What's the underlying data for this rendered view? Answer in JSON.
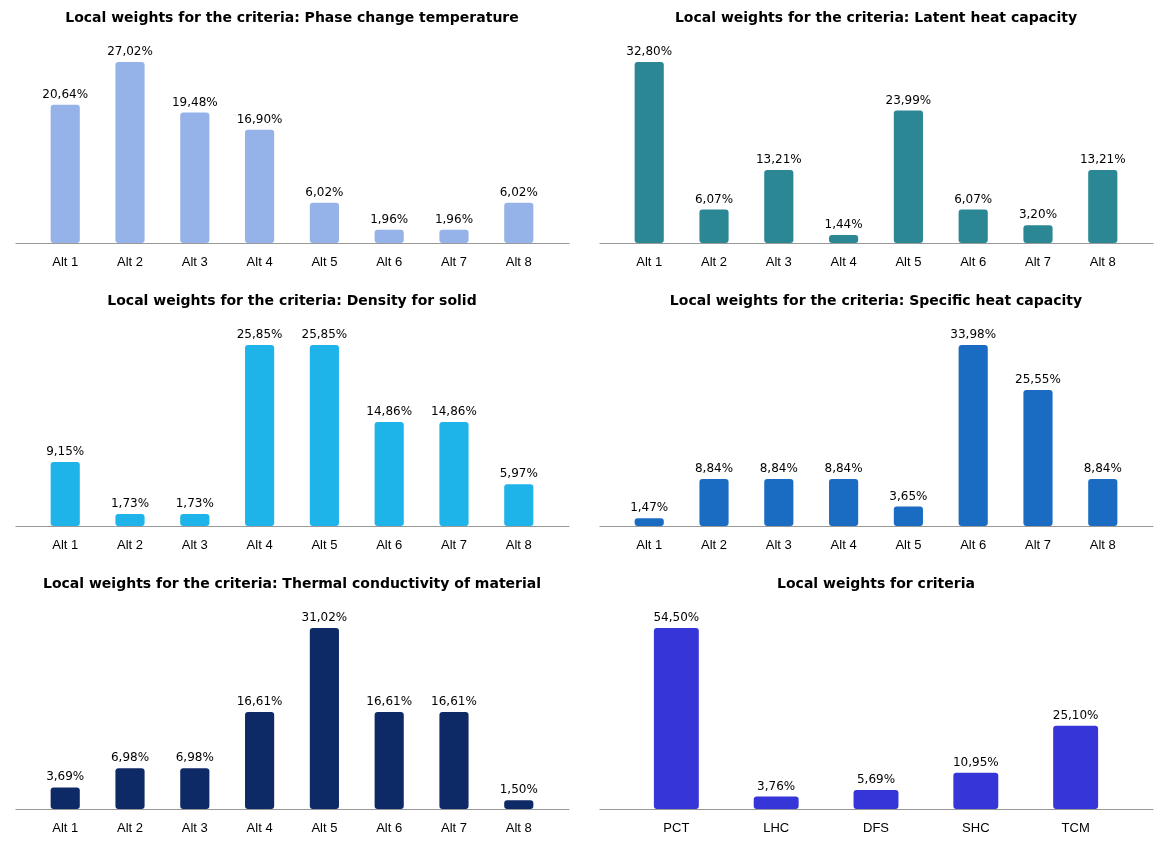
{
  "chart_data": [
    {
      "type": "bar",
      "title": "Local weights for the criteria: Phase change temperature",
      "categories": [
        "Alt 1",
        "Alt 2",
        "Alt 3",
        "Alt 4",
        "Alt 5",
        "Alt 6",
        "Alt 7",
        "Alt 8"
      ],
      "values": [
        20.64,
        27.02,
        19.48,
        16.9,
        6.02,
        1.96,
        1.96,
        6.02
      ],
      "value_labels": [
        "20,64%",
        "27,02%",
        "19,48%",
        "16,90%",
        "6,02%",
        "1,96%",
        "1,96%",
        "6,02%"
      ],
      "color": "#95b3e8"
    },
    {
      "type": "bar",
      "title": "Local weights for the criteria: Latent heat capacity",
      "categories": [
        "Alt 1",
        "Alt 2",
        "Alt 3",
        "Alt 4",
        "Alt 5",
        "Alt 6",
        "Alt 7",
        "Alt 8"
      ],
      "values": [
        32.8,
        6.07,
        13.21,
        1.44,
        23.99,
        6.07,
        3.2,
        13.21
      ],
      "value_labels": [
        "32,80%",
        "6,07%",
        "13,21%",
        "1,44%",
        "23,99%",
        "6,07%",
        "3,20%",
        "13,21%"
      ],
      "color": "#2a8793"
    },
    {
      "type": "bar",
      "title": "Local weights for the criteria: Density for solid",
      "categories": [
        "Alt 1",
        "Alt 2",
        "Alt 3",
        "Alt 4",
        "Alt 5",
        "Alt 6",
        "Alt 7",
        "Alt 8"
      ],
      "values": [
        9.15,
        1.73,
        1.73,
        25.85,
        25.85,
        14.86,
        14.86,
        5.97
      ],
      "value_labels": [
        "9,15%",
        "1,73%",
        "1,73%",
        "25,85%",
        "25,85%",
        "14,86%",
        "14,86%",
        "5,97%"
      ],
      "color": "#1eb4ea"
    },
    {
      "type": "bar",
      "title": "Local weights for the criteria: Specific heat capacity",
      "categories": [
        "Alt 1",
        "Alt 2",
        "Alt 3",
        "Alt 4",
        "Alt 5",
        "Alt 6",
        "Alt 7",
        "Alt 8"
      ],
      "values": [
        1.47,
        8.84,
        8.84,
        8.84,
        3.65,
        33.98,
        25.55,
        8.84
      ],
      "value_labels": [
        "1,47%",
        "8,84%",
        "8,84%",
        "8,84%",
        "3,65%",
        "33,98%",
        "25,55%",
        "8,84%"
      ],
      "color": "#1a6cc2"
    },
    {
      "type": "bar",
      "title": "Local weights for the criteria: Thermal conductivity of material",
      "categories": [
        "Alt 1",
        "Alt 2",
        "Alt 3",
        "Alt 4",
        "Alt 5",
        "Alt 6",
        "Alt 7",
        "Alt 8"
      ],
      "values": [
        3.69,
        6.98,
        6.98,
        16.61,
        31.02,
        16.61,
        16.61,
        1.5
      ],
      "value_labels": [
        "3,69%",
        "6,98%",
        "6,98%",
        "16,61%",
        "31,02%",
        "16,61%",
        "16,61%",
        "1,50%"
      ],
      "color": "#0e2a66"
    },
    {
      "type": "bar",
      "title": "Local weights for criteria",
      "categories": [
        "PCT",
        "LHC",
        "DFS",
        "SHC",
        "TCM"
      ],
      "values": [
        54.5,
        3.76,
        5.69,
        10.95,
        25.1
      ],
      "value_labels": [
        "54,50%",
        "3,76%",
        "5,69%",
        "10,95%",
        "25,10%"
      ],
      "color": "#3535d8"
    }
  ]
}
